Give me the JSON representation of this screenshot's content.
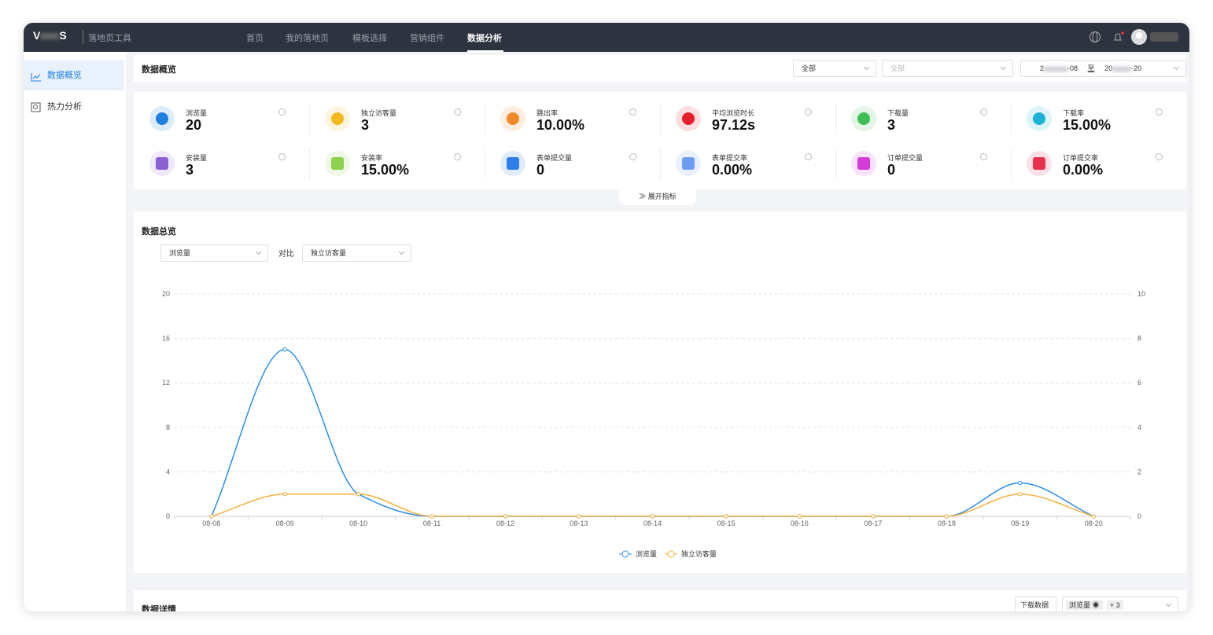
{
  "nav": {
    "logo": [
      "V",
      "S"
    ],
    "product": "落地页工具",
    "menu": [
      "首页",
      "我的落地页",
      "模板选择",
      "营销组件",
      "数据分析"
    ]
  },
  "sidebar": [
    "数据概览",
    "热力分析"
  ],
  "overview": {
    "title": "数据概览",
    "filters": [
      "全部",
      "全部"
    ],
    "date_start": [
      "2",
      "-08"
    ],
    "date_sep": "至",
    "date_end": [
      "20",
      "-20"
    ],
    "metrics": [
      {
        "label": "浏览量",
        "value": "20",
        "color": "#1e7fe0"
      },
      {
        "label": "独立访客量",
        "value": "3",
        "color": "#f4b820"
      },
      {
        "label": "跳出率",
        "value": "10.00%",
        "color": "#f0892a"
      },
      {
        "label": "平均浏览时长",
        "value": "97.12s",
        "color": "#e61f2c"
      },
      {
        "label": "下载量",
        "value": "3",
        "color": "#3dbf55"
      },
      {
        "label": "下载率",
        "value": "15.00%",
        "color": "#1cb3d6"
      },
      {
        "label": "安装量",
        "value": "3",
        "color": "#8a62d4"
      },
      {
        "label": "安装率",
        "value": "15.00%",
        "color": "#8cd24c"
      },
      {
        "label": "表单提交量",
        "value": "0",
        "color": "#2e7deb"
      },
      {
        "label": "表单提交率",
        "value": "0.00%",
        "color": "#6f9cf3"
      },
      {
        "label": "订单提交量",
        "value": "0",
        "color": "#d33bd6"
      },
      {
        "label": "订单提交率",
        "value": "0.00%",
        "color": "#e8314f"
      }
    ],
    "expand": "展开指标"
  },
  "summary": {
    "title": "数据总览",
    "metric_select": "浏览量",
    "compare": "对比",
    "compare_select": "独立访客量"
  },
  "chart_data": {
    "type": "line",
    "categories": [
      "08-08",
      "08-09",
      "08-10",
      "08-11",
      "08-12",
      "08-13",
      "08-14",
      "08-15",
      "08-16",
      "08-17",
      "08-18",
      "08-19",
      "08-20"
    ],
    "series": [
      {
        "name": "浏览量",
        "color": "#2b8ef0",
        "values": [
          0,
          15,
          2,
          0,
          0,
          0,
          0,
          0,
          0,
          0,
          0,
          3,
          0
        ]
      },
      {
        "name": "独立访客量",
        "color": "#f7ae3c",
        "axis": "y2",
        "values": [
          0,
          1,
          1,
          0,
          0,
          0,
          0,
          0,
          0,
          0,
          0,
          1,
          0
        ]
      }
    ],
    "ylim": [
      0,
      20
    ],
    "yticks": [
      0,
      4,
      8,
      12,
      16,
      20
    ],
    "y2lim": [
      0,
      10
    ],
    "y2ticks": [
      0,
      2,
      4,
      6,
      8,
      10
    ],
    "grid": true,
    "legend": "bottom"
  },
  "detail": {
    "title": "数据详情",
    "download": "下载数据",
    "tag": "浏览量",
    "more": "+ 3"
  }
}
